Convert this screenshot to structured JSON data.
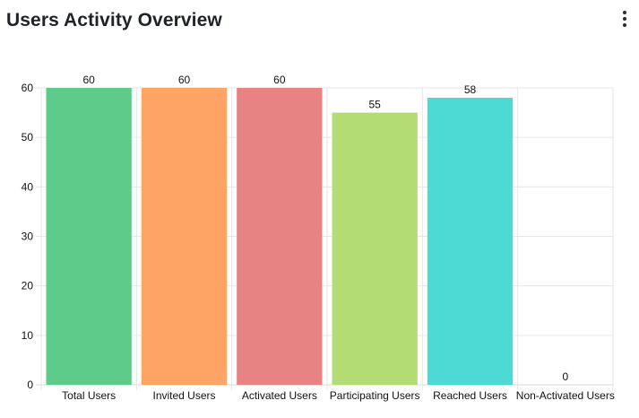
{
  "header": {
    "title": "Users Activity Overview",
    "menu_icon": "more-vertical-icon"
  },
  "chart_data": {
    "type": "bar",
    "title": "Users Activity Overview",
    "xlabel": "",
    "ylabel": "",
    "ylim": [
      0,
      60
    ],
    "yticks": [
      0,
      10,
      20,
      30,
      40,
      50,
      60
    ],
    "grid": true,
    "categories": [
      "Total Users",
      "Invited Users",
      "Activated Users",
      "Participating Users",
      "Reached Users",
      "Non-Activated Users"
    ],
    "values": [
      60,
      60,
      60,
      55,
      58,
      0
    ],
    "colors": [
      "#5fcb8a",
      "#fea464",
      "#e88384",
      "#b4dc75",
      "#4dd9d4",
      "#9ad0f5"
    ]
  }
}
